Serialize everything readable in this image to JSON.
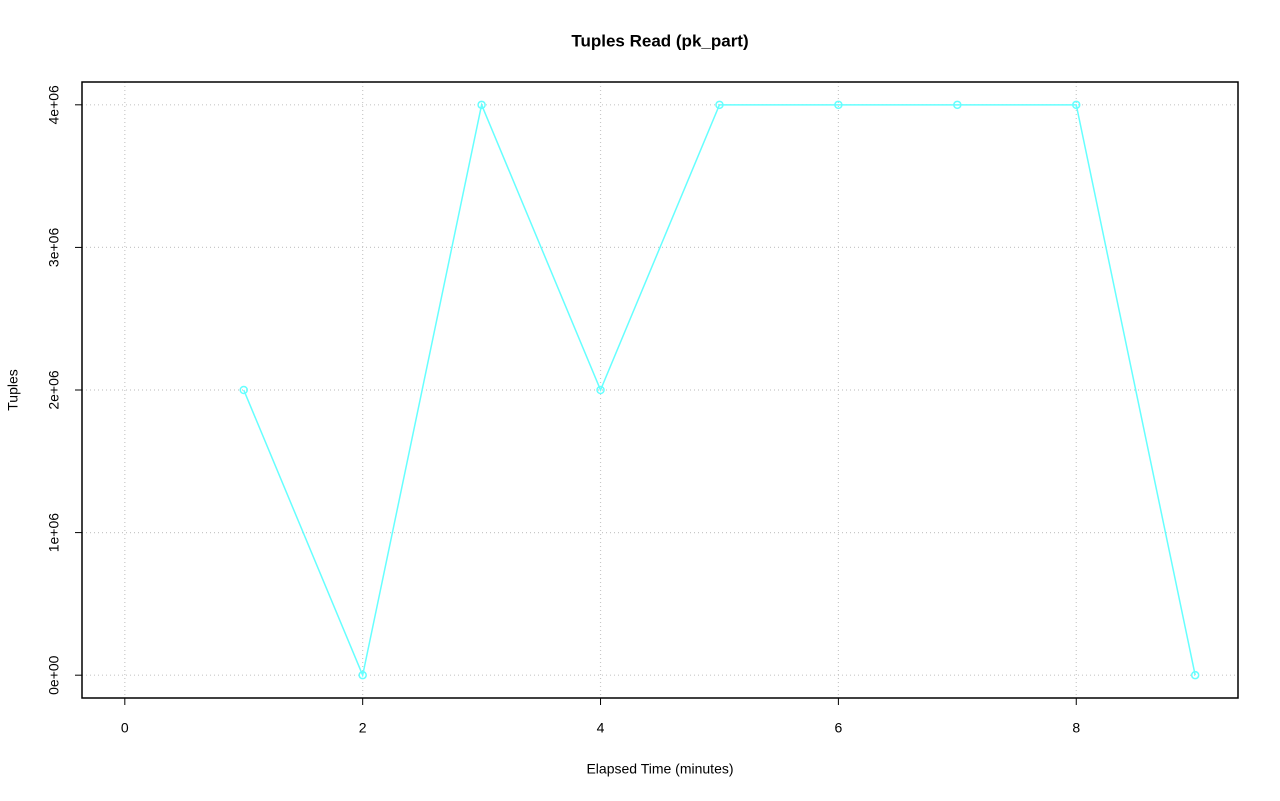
{
  "chart_data": {
    "type": "line",
    "title": "Tuples Read (pk_part)",
    "x_label": "Elapsed Time (minutes)",
    "y_label": "Tuples",
    "x": [
      1,
      2,
      3,
      4,
      5,
      6,
      7,
      8,
      9
    ],
    "series": [
      {
        "name": "pk_part",
        "color": "#66ffff",
        "values": [
          2000000,
          0,
          4000000,
          2000000,
          4000000,
          4000000,
          4000000,
          4000000,
          0
        ]
      }
    ],
    "xlim": [
      -0.36,
      9.36
    ],
    "ylim": [
      -160000,
      4160000
    ],
    "xticks": [
      0,
      2,
      4,
      6,
      8
    ],
    "yticks": [
      {
        "value": 0,
        "label": "0e+00"
      },
      {
        "value": 1000000,
        "label": "1e+06"
      },
      {
        "value": 2000000,
        "label": "2e+06"
      },
      {
        "value": 3000000,
        "label": "3e+06"
      },
      {
        "value": 4000000,
        "label": "4e+06"
      }
    ],
    "grid": true
  }
}
